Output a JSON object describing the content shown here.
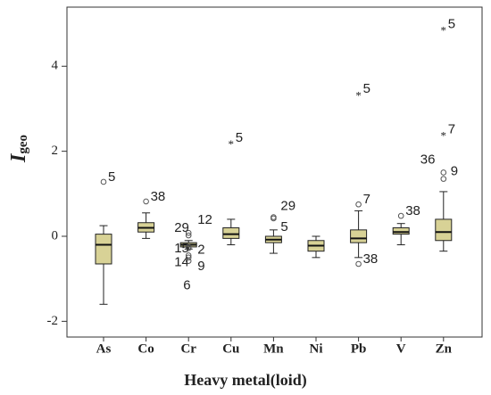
{
  "chart_data": {
    "type": "box",
    "xlabel": "Heavy metal(loid)",
    "ylabel": {
      "main": "I",
      "sub": "geo"
    },
    "ylim": [
      -2.37,
      5.39
    ],
    "yticks": [
      -2,
      0,
      2,
      4
    ],
    "box_color": "#d8d296",
    "categories": [
      "As",
      "Co",
      "Cr",
      "Cu",
      "Mn",
      "Ni",
      "Pb",
      "V",
      "Zn"
    ],
    "series": [
      {
        "min": -1.6,
        "q1": -0.65,
        "median": -0.2,
        "q3": 0.05,
        "max": 0.25,
        "outliers": [
          {
            "value": 1.28,
            "label": "5",
            "kind": "circle"
          }
        ]
      },
      {
        "min": -0.05,
        "q1": 0.1,
        "median": 0.2,
        "q3": 0.32,
        "max": 0.55,
        "outliers": [
          {
            "value": 0.82,
            "label": "38",
            "kind": "circle"
          }
        ]
      },
      {
        "min": -0.3,
        "q1": -0.25,
        "median": -0.2,
        "q3": -0.15,
        "max": -0.1,
        "outliers": [
          {
            "value": 0.08,
            "label": "12",
            "kind": "circle"
          },
          {
            "value": 0.02,
            "label": "29",
            "kind": "circle"
          },
          {
            "value": -0.25,
            "label": "15",
            "kind": "circle"
          },
          {
            "value": -0.28,
            "label": "2",
            "kind": "circle"
          },
          {
            "value": -0.45,
            "label": "14",
            "kind": "circle"
          },
          {
            "value": -0.5,
            "label": "9",
            "kind": "circle"
          },
          {
            "value": -0.58,
            "label": "6",
            "kind": "circle"
          }
        ]
      },
      {
        "min": -0.2,
        "q1": -0.05,
        "median": 0.05,
        "q3": 0.2,
        "max": 0.4,
        "outliers": [
          {
            "value": 2.2,
            "label": "5",
            "kind": "star"
          }
        ]
      },
      {
        "min": -0.4,
        "q1": -0.15,
        "median": -0.08,
        "q3": 0.0,
        "max": 0.15,
        "outliers": [
          {
            "value": 0.45,
            "label": "29",
            "kind": "circle"
          },
          {
            "value": 0.42,
            "label": "5",
            "kind": "circle"
          }
        ]
      },
      {
        "min": -0.5,
        "q1": -0.35,
        "median": -0.22,
        "q3": -0.1,
        "max": 0.0,
        "outliers": []
      },
      {
        "min": -0.5,
        "q1": -0.15,
        "median": -0.05,
        "q3": 0.15,
        "max": 0.6,
        "outliers": [
          {
            "value": 0.75,
            "label": "7",
            "kind": "circle"
          },
          {
            "value": -0.65,
            "label": "38",
            "kind": "circle"
          },
          {
            "value": 3.35,
            "label": "5",
            "kind": "star"
          }
        ]
      },
      {
        "min": -0.2,
        "q1": 0.05,
        "median": 0.1,
        "q3": 0.2,
        "max": 0.3,
        "outliers": [
          {
            "value": 0.48,
            "label": "38",
            "kind": "circle"
          }
        ]
      },
      {
        "min": -0.35,
        "q1": -0.1,
        "median": 0.1,
        "q3": 0.4,
        "max": 1.05,
        "outliers": [
          {
            "value": 1.5,
            "label": "36",
            "kind": "circle"
          },
          {
            "value": 1.35,
            "label": "9",
            "kind": "circle"
          },
          {
            "value": 2.4,
            "label": "7",
            "kind": "star"
          },
          {
            "value": 4.88,
            "label": "5",
            "kind": "star"
          }
        ]
      }
    ]
  }
}
